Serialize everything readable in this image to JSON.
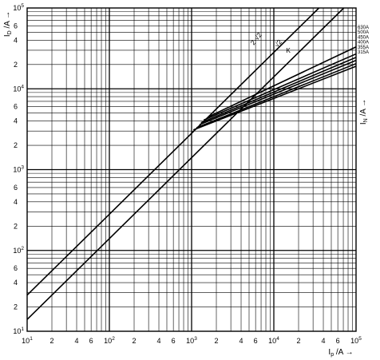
{
  "chart_data": {
    "type": "line",
    "x_axis": {
      "label_main": "I",
      "label_sub": "p",
      "label_unit": "/A",
      "scale": "log",
      "range": [
        10,
        100000
      ],
      "decade_labels": [
        {
          "mant": "",
          "base": "10",
          "exp": "1",
          "value": 10
        },
        {
          "mant": "",
          "base": "10",
          "exp": "2",
          "value": 100
        },
        {
          "mant": "",
          "base": "10",
          "exp": "3",
          "value": 1000
        },
        {
          "mant": "",
          "base": "10",
          "exp": "4",
          "value": 10000
        },
        {
          "mant": "",
          "base": "10",
          "exp": "5",
          "value": 100000
        }
      ],
      "minor_labels": [
        {
          "text": "2",
          "value": 20
        },
        {
          "text": "4",
          "value": 40
        },
        {
          "text": "6",
          "value": 60
        },
        {
          "text": "2",
          "value": 200
        },
        {
          "text": "4",
          "value": 400
        },
        {
          "text": "6",
          "value": 600
        },
        {
          "text": "2",
          "value": 2000
        },
        {
          "text": "4",
          "value": 4000
        },
        {
          "text": "6",
          "value": 6000
        },
        {
          "text": "2",
          "value": 20000
        },
        {
          "text": "4",
          "value": 40000
        },
        {
          "text": "6",
          "value": 60000
        }
      ]
    },
    "y_axis": {
      "label_main": "I",
      "label_sub": "D",
      "label_unit": "/A",
      "scale": "log",
      "range": [
        10,
        100000
      ],
      "decade_labels": [
        {
          "base": "10",
          "exp": "1",
          "value": 10
        },
        {
          "base": "10",
          "exp": "2",
          "value": 100
        },
        {
          "base": "10",
          "exp": "3",
          "value": 1000
        },
        {
          "base": "10",
          "exp": "4",
          "value": 10000
        },
        {
          "base": "10",
          "exp": "5",
          "value": 100000
        }
      ],
      "minor_labels": [
        {
          "text": "2",
          "value": 20
        },
        {
          "text": "4",
          "value": 40
        },
        {
          "text": "6",
          "value": 60
        },
        {
          "text": "2",
          "value": 200
        },
        {
          "text": "4",
          "value": 400
        },
        {
          "text": "6",
          "value": 600
        },
        {
          "text": "2",
          "value": 2000
        },
        {
          "text": "4",
          "value": 4000
        },
        {
          "text": "6",
          "value": 6000
        },
        {
          "text": "2",
          "value": 20000
        },
        {
          "text": "4",
          "value": 40000
        },
        {
          "text": "6",
          "value": 60000
        }
      ]
    },
    "right_axis": {
      "label_main": "I",
      "label_sub": "N",
      "label_unit": "/A"
    },
    "grid": true,
    "series": [
      {
        "name": "2·√2",
        "label": "2·√2",
        "points": [
          [
            10,
            28
          ],
          [
            100000,
            283000
          ]
        ]
      },
      {
        "name": "√2",
        "label": "√2",
        "points": [
          [
            10,
            14
          ],
          [
            100000,
            141000
          ]
        ]
      },
      {
        "name": "630A",
        "label": "630A",
        "points": [
          [
            1600,
            4500
          ],
          [
            100000,
            33000
          ]
        ]
      },
      {
        "name": "500A",
        "label": "500A",
        "points": [
          [
            1400,
            4100
          ],
          [
            100000,
            27000
          ]
        ]
      },
      {
        "name": "450A",
        "label": "450A",
        "points": [
          [
            1300,
            3800
          ],
          [
            100000,
            24500
          ]
        ]
      },
      {
        "name": "400A",
        "label": "400A",
        "points": [
          [
            1250,
            3600
          ],
          [
            100000,
            22500
          ]
        ]
      },
      {
        "name": "355A",
        "label": "355A",
        "points": [
          [
            1150,
            3300
          ],
          [
            100000,
            20500
          ]
        ]
      },
      {
        "name": "315A",
        "label": "315A",
        "points": [
          [
            1050,
            3100
          ],
          [
            100000,
            19000
          ]
        ]
      }
    ],
    "knee_marker_label": "K"
  }
}
